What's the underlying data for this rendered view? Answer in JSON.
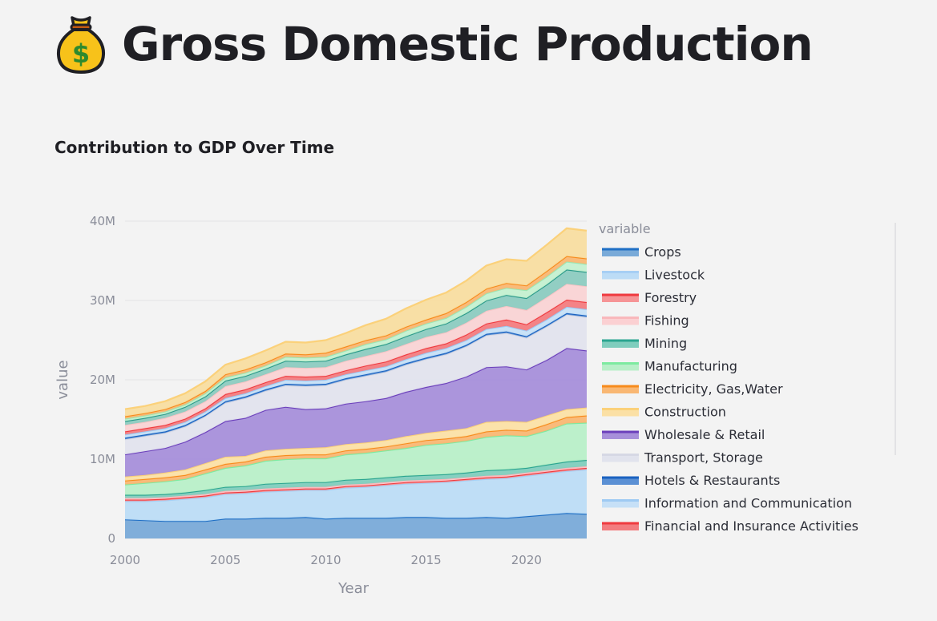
{
  "page": {
    "title": "Gross Domestic Production",
    "icon": "money-bag-icon"
  },
  "section": {
    "subtitle": "Contribution to GDP Over Time"
  },
  "chart_data": {
    "type": "area",
    "title": "",
    "xlabel": "Year",
    "ylabel": "value",
    "legend_title": "variable",
    "legend_position": "right",
    "xlim": [
      2000,
      2023
    ],
    "ylim": [
      0,
      40000000
    ],
    "x_ticks": [
      2000,
      2005,
      2010,
      2015,
      2020
    ],
    "y_ticks": [
      0,
      10000000,
      20000000,
      30000000,
      40000000
    ],
    "y_tick_labels": [
      "0",
      "10M",
      "20M",
      "30M",
      "40M"
    ],
    "grid": true,
    "x": [
      2000,
      2001,
      2002,
      2003,
      2004,
      2005,
      2006,
      2007,
      2008,
      2009,
      2010,
      2011,
      2012,
      2013,
      2014,
      2015,
      2016,
      2017,
      2018,
      2019,
      2020,
      2021,
      2022,
      2023
    ],
    "series": [
      {
        "name": "Crops",
        "color": "#1f6fc5",
        "fill": "#79aad8",
        "values": [
          2.4,
          2.3,
          2.2,
          2.2,
          2.2,
          2.5,
          2.5,
          2.6,
          2.6,
          2.7,
          2.5,
          2.6,
          2.6,
          2.6,
          2.7,
          2.7,
          2.6,
          2.6,
          2.7,
          2.6,
          2.8,
          3.0,
          3.2,
          3.1
        ]
      },
      {
        "name": "Livestock",
        "color": "#a7cff4",
        "fill": "#bcdcf6",
        "values": [
          2.3,
          2.4,
          2.6,
          2.8,
          3.0,
          3.1,
          3.2,
          3.3,
          3.4,
          3.4,
          3.6,
          3.8,
          3.9,
          4.1,
          4.2,
          4.3,
          4.5,
          4.7,
          4.8,
          5.0,
          5.1,
          5.2,
          5.3,
          5.6
        ]
      },
      {
        "name": "Forestry",
        "color": "#ef3a3f",
        "fill": "#f69496",
        "values": [
          0.2,
          0.2,
          0.2,
          0.2,
          0.2,
          0.2,
          0.2,
          0.2,
          0.2,
          0.2,
          0.2,
          0.2,
          0.2,
          0.2,
          0.2,
          0.2,
          0.2,
          0.2,
          0.2,
          0.2,
          0.2,
          0.2,
          0.2,
          0.2
        ]
      },
      {
        "name": "Fishing",
        "color": "#f9b8bb",
        "fill": "#fbd0d2",
        "values": [
          0.2,
          0.2,
          0.2,
          0.2,
          0.2,
          0.2,
          0.2,
          0.2,
          0.2,
          0.2,
          0.2,
          0.2,
          0.2,
          0.2,
          0.2,
          0.2,
          0.2,
          0.2,
          0.2,
          0.2,
          0.2,
          0.2,
          0.2,
          0.2
        ]
      },
      {
        "name": "Mining",
        "color": "#2ba590",
        "fill": "#7fcdbd",
        "values": [
          0.4,
          0.4,
          0.4,
          0.4,
          0.5,
          0.5,
          0.5,
          0.6,
          0.6,
          0.6,
          0.6,
          0.6,
          0.6,
          0.6,
          0.6,
          0.6,
          0.6,
          0.6,
          0.7,
          0.7,
          0.6,
          0.7,
          0.8,
          0.8
        ]
      },
      {
        "name": "Manufacturing",
        "color": "#7eeaa0",
        "fill": "#b8efc8",
        "values": [
          1.3,
          1.5,
          1.6,
          1.7,
          2.1,
          2.4,
          2.6,
          2.9,
          3.0,
          3.0,
          3.0,
          3.2,
          3.3,
          3.4,
          3.5,
          3.8,
          3.9,
          4.0,
          4.2,
          4.3,
          4.0,
          4.3,
          4.8,
          4.7
        ]
      },
      {
        "name": "Electricity, Gas,Water",
        "color": "#f78b1c",
        "fill": "#f9b773",
        "values": [
          0.5,
          0.5,
          0.5,
          0.5,
          0.5,
          0.5,
          0.5,
          0.5,
          0.5,
          0.5,
          0.5,
          0.5,
          0.5,
          0.5,
          0.6,
          0.6,
          0.6,
          0.6,
          0.7,
          0.7,
          0.7,
          0.8,
          0.8,
          0.9
        ]
      },
      {
        "name": "Construction",
        "color": "#fbd17a",
        "fill": "#fbe0a5",
        "values": [
          0.5,
          0.5,
          0.6,
          0.7,
          0.8,
          0.9,
          0.7,
          0.8,
          0.8,
          0.8,
          0.9,
          0.8,
          0.8,
          0.8,
          0.9,
          0.9,
          1.0,
          1.0,
          1.2,
          1.1,
          1.1,
          1.1,
          1.0,
          1.0
        ]
      },
      {
        "name": "Wholesale & Retail",
        "color": "#6b3fbb",
        "fill": "#a78fda",
        "values": [
          2.8,
          3.0,
          3.1,
          3.5,
          3.9,
          4.5,
          4.8,
          5.1,
          5.3,
          4.9,
          4.9,
          5.1,
          5.2,
          5.3,
          5.6,
          5.8,
          6.0,
          6.5,
          6.9,
          6.9,
          6.6,
          7.0,
          7.7,
          7.2
        ]
      },
      {
        "name": "Transport, Storage",
        "color": "#d6d8e4",
        "fill": "#e1e3ed",
        "values": [
          1.9,
          1.9,
          1.9,
          1.9,
          2.0,
          2.3,
          2.5,
          2.4,
          2.7,
          2.9,
          2.9,
          3.0,
          3.2,
          3.3,
          3.4,
          3.5,
          3.6,
          3.8,
          4.0,
          4.2,
          4.0,
          4.2,
          4.2,
          4.2
        ]
      },
      {
        "name": "Hotels & Restaurants",
        "color": "#1a62c0",
        "fill": "#5b90d4",
        "values": [
          0.2,
          0.2,
          0.2,
          0.2,
          0.2,
          0.2,
          0.2,
          0.2,
          0.2,
          0.2,
          0.2,
          0.2,
          0.2,
          0.2,
          0.2,
          0.2,
          0.2,
          0.2,
          0.2,
          0.2,
          0.2,
          0.2,
          0.2,
          0.2
        ]
      },
      {
        "name": "Information and Communication",
        "color": "#9ecaf3",
        "fill": "#c6e0f7",
        "values": [
          0.4,
          0.4,
          0.4,
          0.4,
          0.4,
          0.4,
          0.4,
          0.4,
          0.5,
          0.5,
          0.5,
          0.5,
          0.5,
          0.5,
          0.5,
          0.6,
          0.6,
          0.6,
          0.6,
          0.7,
          0.7,
          0.7,
          0.8,
          0.8
        ]
      },
      {
        "name": "Financial and Insurance Activities",
        "color": "#ef3a3f",
        "fill": "#f37c7f",
        "values": [
          0.4,
          0.4,
          0.4,
          0.4,
          0.4,
          0.5,
          0.5,
          0.5,
          0.5,
          0.5,
          0.5,
          0.5,
          0.6,
          0.6,
          0.6,
          0.6,
          0.6,
          0.7,
          0.7,
          0.8,
          0.8,
          0.9,
          0.9,
          0.9
        ]
      },
      {
        "name": "",
        "color": "#f8c5c6",
        "fill": "#f9d3d4",
        "values": [
          0.8,
          0.8,
          0.9,
          0.9,
          0.9,
          1.0,
          1.0,
          1.0,
          1.1,
          1.1,
          1.1,
          1.2,
          1.2,
          1.3,
          1.3,
          1.4,
          1.4,
          1.5,
          1.6,
          1.7,
          1.8,
          1.9,
          2.0,
          2.0
        ]
      },
      {
        "name": "",
        "color": "#2a9a89",
        "fill": "#8ccbc0",
        "values": [
          0.5,
          0.5,
          0.5,
          0.6,
          0.6,
          0.7,
          0.7,
          0.7,
          0.8,
          0.8,
          0.8,
          0.8,
          0.9,
          0.9,
          1.0,
          1.0,
          1.1,
          1.2,
          1.3,
          1.4,
          1.5,
          1.6,
          1.8,
          1.8
        ]
      },
      {
        "name": "",
        "color": "#9de6b3",
        "fill": "#c4f0d0",
        "values": [
          0.3,
          0.3,
          0.3,
          0.3,
          0.4,
          0.4,
          0.4,
          0.4,
          0.5,
          0.5,
          0.5,
          0.5,
          0.6,
          0.6,
          0.7,
          0.7,
          0.7,
          0.8,
          0.9,
          0.9,
          1.0,
          1.0,
          1.0,
          1.0
        ]
      },
      {
        "name": "",
        "color": "#f78b1c",
        "fill": "#f9b773",
        "values": [
          0.3,
          0.3,
          0.3,
          0.3,
          0.3,
          0.4,
          0.4,
          0.4,
          0.4,
          0.4,
          0.5,
          0.5,
          0.5,
          0.5,
          0.5,
          0.5,
          0.6,
          0.6,
          0.6,
          0.6,
          0.6,
          0.7,
          0.7,
          0.7
        ]
      },
      {
        "name": "",
        "color": "#fbd17a",
        "fill": "#f8dda0",
        "values": [
          0.9,
          0.9,
          1.0,
          1.1,
          1.2,
          1.2,
          1.4,
          1.5,
          1.5,
          1.5,
          1.6,
          1.7,
          1.9,
          2.1,
          2.3,
          2.5,
          2.6,
          2.7,
          2.9,
          3.0,
          3.1,
          3.3,
          3.5,
          3.5
        ]
      }
    ]
  }
}
